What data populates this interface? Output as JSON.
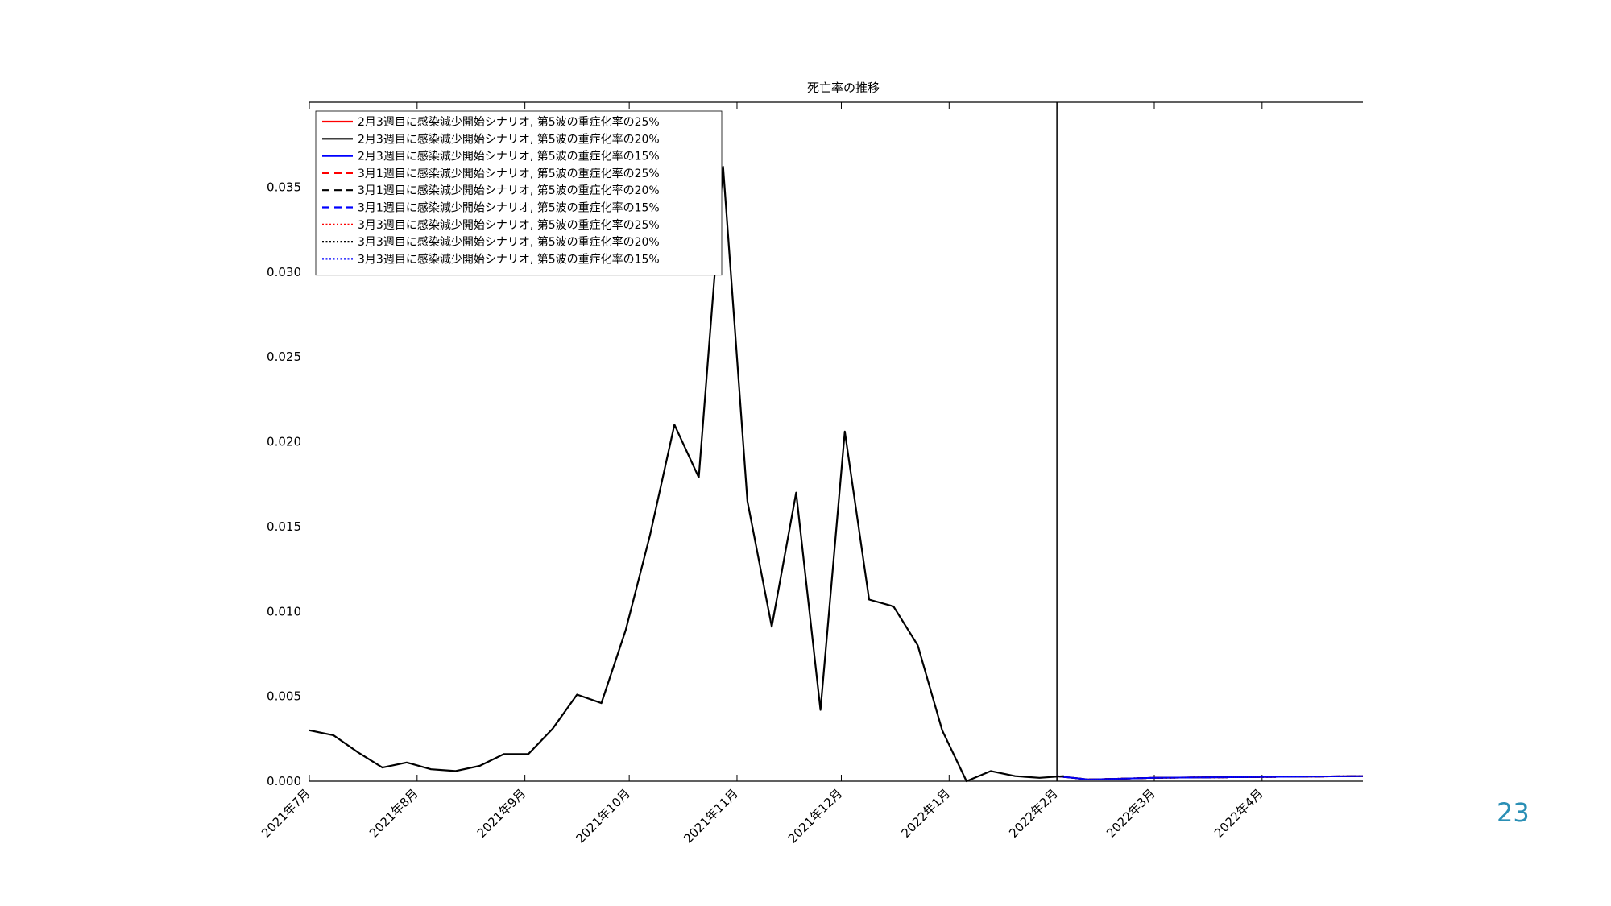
{
  "page_number": "23",
  "chart_data": {
    "type": "line",
    "title": "死亡率の推移",
    "xlabel": "",
    "ylabel": "",
    "x_range": [
      "2021-07-01",
      "2022-04-30"
    ],
    "ylim": [
      0,
      0.04
    ],
    "grid": false,
    "legend_placement": "top-left",
    "x_ticks": [
      {
        "date": "2021-07-01",
        "label": "2021年7月"
      },
      {
        "date": "2021-08-01",
        "label": "2021年8月"
      },
      {
        "date": "2021-09-01",
        "label": "2021年9月"
      },
      {
        "date": "2021-10-01",
        "label": "2021年10月"
      },
      {
        "date": "2021-11-01",
        "label": "2021年11月"
      },
      {
        "date": "2021-12-01",
        "label": "2021年12月"
      },
      {
        "date": "2022-01-01",
        "label": "2022年1月"
      },
      {
        "date": "2022-02-01",
        "label": "2022年2月"
      },
      {
        "date": "2022-03-01",
        "label": "2022年3月"
      },
      {
        "date": "2022-04-01",
        "label": "2022年4月"
      }
    ],
    "y_ticks": [
      {
        "value": 0.0,
        "label": "0.000"
      },
      {
        "value": 0.005,
        "label": "0.005"
      },
      {
        "value": 0.01,
        "label": "0.010"
      },
      {
        "value": 0.015,
        "label": "0.015"
      },
      {
        "value": 0.02,
        "label": "0.020"
      },
      {
        "value": 0.025,
        "label": "0.025"
      },
      {
        "value": 0.03,
        "label": "0.030"
      },
      {
        "value": 0.035,
        "label": "0.035"
      }
    ],
    "vertical_line": {
      "date": "2022-02-01",
      "color": "#000000"
    },
    "observed": {
      "color": "#000000",
      "points": [
        {
          "date": "2021-07-01",
          "value": 0.003
        },
        {
          "date": "2021-07-08",
          "value": 0.0027
        },
        {
          "date": "2021-07-15",
          "value": 0.0017
        },
        {
          "date": "2021-07-22",
          "value": 0.0008
        },
        {
          "date": "2021-07-29",
          "value": 0.0011
        },
        {
          "date": "2021-08-05",
          "value": 0.0007
        },
        {
          "date": "2021-08-12",
          "value": 0.0006
        },
        {
          "date": "2021-08-19",
          "value": 0.0009
        },
        {
          "date": "2021-08-26",
          "value": 0.0016
        },
        {
          "date": "2021-09-02",
          "value": 0.0016
        },
        {
          "date": "2021-09-09",
          "value": 0.0031
        },
        {
          "date": "2021-09-16",
          "value": 0.0051
        },
        {
          "date": "2021-09-23",
          "value": 0.0046
        },
        {
          "date": "2021-09-30",
          "value": 0.0089
        },
        {
          "date": "2021-10-07",
          "value": 0.0145
        },
        {
          "date": "2021-10-14",
          "value": 0.021
        },
        {
          "date": "2021-10-21",
          "value": 0.0179
        },
        {
          "date": "2021-10-28",
          "value": 0.0362
        },
        {
          "date": "2021-11-04",
          "value": 0.0165
        },
        {
          "date": "2021-11-11",
          "value": 0.0091
        },
        {
          "date": "2021-11-18",
          "value": 0.017
        },
        {
          "date": "2021-11-25",
          "value": 0.0042
        },
        {
          "date": "2021-12-02",
          "value": 0.0206
        },
        {
          "date": "2021-12-09",
          "value": 0.0107
        },
        {
          "date": "2021-12-16",
          "value": 0.0103
        },
        {
          "date": "2021-12-23",
          "value": 0.008
        },
        {
          "date": "2021-12-30",
          "value": 0.003
        },
        {
          "date": "2022-01-06",
          "value": 0.0
        },
        {
          "date": "2022-01-13",
          "value": 0.0006
        },
        {
          "date": "2022-01-20",
          "value": 0.0003
        },
        {
          "date": "2022-01-27",
          "value": 0.0002
        },
        {
          "date": "2022-02-03",
          "value": 0.0003
        }
      ]
    },
    "series": [
      {
        "name": "2月3週目に感染減少開始シナリオ, 第5波の重症化率の25%",
        "color": "#ff0000",
        "style": "solid",
        "points": [
          {
            "date": "2022-02-01",
            "value": 0.0003
          },
          {
            "date": "2022-02-10",
            "value": 0.0001
          },
          {
            "date": "2022-03-01",
            "value": 0.0002
          },
          {
            "date": "2022-04-30",
            "value": 0.0003
          }
        ]
      },
      {
        "name": "2月3週目に感染減少開始シナリオ, 第5波の重症化率の20%",
        "color": "#000000",
        "style": "solid",
        "points": [
          {
            "date": "2022-02-01",
            "value": 0.0003
          },
          {
            "date": "2022-02-10",
            "value": 0.0001
          },
          {
            "date": "2022-03-01",
            "value": 0.0002
          },
          {
            "date": "2022-04-30",
            "value": 0.0003
          }
        ]
      },
      {
        "name": "2月3週目に感染減少開始シナリオ, 第5波の重症化率の15%",
        "color": "#0000ff",
        "style": "solid",
        "points": [
          {
            "date": "2022-02-01",
            "value": 0.0003
          },
          {
            "date": "2022-02-10",
            "value": 0.0001
          },
          {
            "date": "2022-03-01",
            "value": 0.0002
          },
          {
            "date": "2022-04-30",
            "value": 0.0003
          }
        ]
      },
      {
        "name": "3月1週目に感染減少開始シナリオ, 第5波の重症化率の25%",
        "color": "#ff0000",
        "style": "dashed",
        "points": [
          {
            "date": "2022-02-01",
            "value": 0.0003
          },
          {
            "date": "2022-02-10",
            "value": 0.0001
          },
          {
            "date": "2022-03-01",
            "value": 0.0002
          },
          {
            "date": "2022-04-30",
            "value": 0.0003
          }
        ]
      },
      {
        "name": "3月1週目に感染減少開始シナリオ, 第5波の重症化率の20%",
        "color": "#000000",
        "style": "dashed",
        "points": [
          {
            "date": "2022-02-01",
            "value": 0.0003
          },
          {
            "date": "2022-02-10",
            "value": 0.0001
          },
          {
            "date": "2022-03-01",
            "value": 0.0002
          },
          {
            "date": "2022-04-30",
            "value": 0.0003
          }
        ]
      },
      {
        "name": "3月1週目に感染減少開始シナリオ, 第5波の重症化率の15%",
        "color": "#0000ff",
        "style": "dashed",
        "points": [
          {
            "date": "2022-02-01",
            "value": 0.0003
          },
          {
            "date": "2022-02-10",
            "value": 0.0001
          },
          {
            "date": "2022-03-01",
            "value": 0.0002
          },
          {
            "date": "2022-04-30",
            "value": 0.0003
          }
        ]
      },
      {
        "name": "3月3週目に感染減少開始シナリオ, 第5波の重症化率の25%",
        "color": "#ff0000",
        "style": "dotted",
        "points": [
          {
            "date": "2022-02-01",
            "value": 0.0003
          },
          {
            "date": "2022-02-10",
            "value": 0.0001
          },
          {
            "date": "2022-03-01",
            "value": 0.0002
          },
          {
            "date": "2022-04-30",
            "value": 0.0003
          }
        ]
      },
      {
        "name": "3月3週目に感染減少開始シナリオ, 第5波の重症化率の20%",
        "color": "#000000",
        "style": "dotted",
        "points": [
          {
            "date": "2022-02-01",
            "value": 0.0003
          },
          {
            "date": "2022-02-10",
            "value": 0.0001
          },
          {
            "date": "2022-03-01",
            "value": 0.0002
          },
          {
            "date": "2022-04-30",
            "value": 0.0003
          }
        ]
      },
      {
        "name": "3月3週目に感染減少開始シナリオ, 第5波の重症化率の15%",
        "color": "#0000ff",
        "style": "dotted",
        "points": [
          {
            "date": "2022-02-01",
            "value": 0.0003
          },
          {
            "date": "2022-02-10",
            "value": 0.0001
          },
          {
            "date": "2022-03-01",
            "value": 0.0002
          },
          {
            "date": "2022-04-30",
            "value": 0.0003
          }
        ]
      }
    ]
  }
}
